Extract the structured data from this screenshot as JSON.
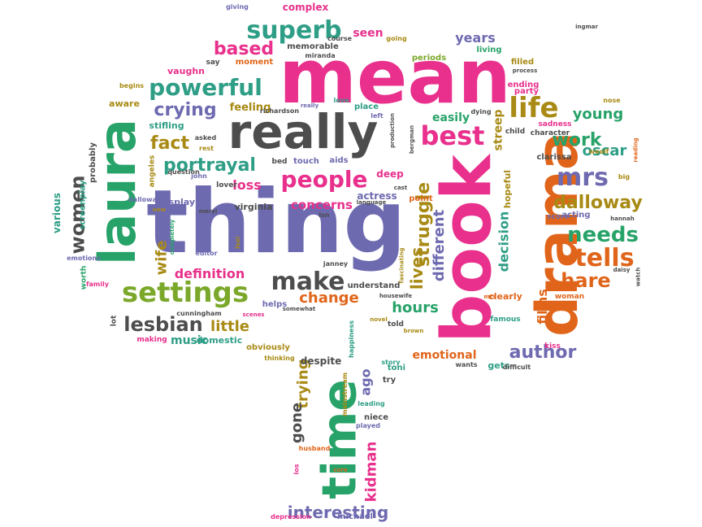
{
  "palette": {
    "pink": "#e8308c",
    "purple": "#6e6ab0",
    "green": "#27a369",
    "orange": "#e0651a",
    "gray": "#4d4d4d",
    "olive": "#a88a14",
    "lime": "#7ba82a",
    "teal": "#2e9e86"
  },
  "words": [
    {
      "text": "mean",
      "color": "pink",
      "size": 92
    },
    {
      "text": "thing",
      "color": "purple",
      "size": 108
    },
    {
      "text": "book",
      "color": "pink",
      "size": 84
    },
    {
      "text": "really",
      "color": "gray",
      "size": 58
    },
    {
      "text": "laura",
      "color": "green",
      "size": 62
    },
    {
      "text": "drama",
      "color": "orange",
      "size": 70
    },
    {
      "text": "time",
      "color": "green",
      "size": 58
    },
    {
      "text": "settings",
      "color": "lime",
      "size": 34
    },
    {
      "text": "powerful",
      "color": "teal",
      "size": 28
    },
    {
      "text": "superb",
      "color": "teal",
      "size": 30
    },
    {
      "text": "life",
      "color": "olive",
      "size": 34
    },
    {
      "text": "best",
      "color": "pink",
      "size": 32
    },
    {
      "text": "people",
      "color": "pink",
      "size": 28
    },
    {
      "text": "make",
      "color": "gray",
      "size": 30
    },
    {
      "text": "tells",
      "color": "orange",
      "size": 30
    },
    {
      "text": "needs",
      "color": "green",
      "size": 26
    },
    {
      "text": "dalloway",
      "color": "olive",
      "size": 22
    },
    {
      "text": "mrs",
      "color": "purple",
      "size": 30
    },
    {
      "text": "struggle",
      "color": "olive",
      "size": 22
    },
    {
      "text": "portrayal",
      "color": "teal",
      "size": 22
    },
    {
      "text": "women",
      "color": "gray",
      "size": 24
    },
    {
      "text": "lesbian",
      "color": "gray",
      "size": 24
    },
    {
      "text": "crying",
      "color": "purple",
      "size": 22
    },
    {
      "text": "hare",
      "color": "orange",
      "size": 24
    },
    {
      "text": "author",
      "color": "purple",
      "size": 22
    },
    {
      "text": "interesting",
      "color": "purple",
      "size": 20
    },
    {
      "text": "fact",
      "color": "olive",
      "size": 22
    },
    {
      "text": "based",
      "color": "pink",
      "size": 22
    },
    {
      "text": "work",
      "color": "green",
      "size": 22
    },
    {
      "text": "young",
      "color": "green",
      "size": 18
    },
    {
      "text": "oscar",
      "color": "teal",
      "size": 18
    },
    {
      "text": "hours",
      "color": "green",
      "size": 18
    },
    {
      "text": "change",
      "color": "orange",
      "size": 18
    },
    {
      "text": "lives",
      "color": "olive",
      "size": 20
    },
    {
      "text": "different",
      "color": "purple",
      "size": 18
    },
    {
      "text": "decision",
      "color": "teal",
      "size": 16
    },
    {
      "text": "films",
      "color": "orange",
      "size": 16
    },
    {
      "text": "kidman",
      "color": "pink",
      "size": 18
    },
    {
      "text": "trying",
      "color": "olive",
      "size": 18
    },
    {
      "text": "gone",
      "color": "gray",
      "size": 18
    },
    {
      "text": "ago",
      "color": "purple",
      "size": 16
    },
    {
      "text": "definition",
      "color": "pink",
      "size": 16
    },
    {
      "text": "little",
      "color": "olive",
      "size": 18
    },
    {
      "text": "music",
      "color": "teal",
      "size": 14
    },
    {
      "text": "concerns",
      "color": "pink",
      "size": 15
    },
    {
      "text": "loss",
      "color": "pink",
      "size": 16
    },
    {
      "text": "years",
      "color": "purple",
      "size": 16
    },
    {
      "text": "easily",
      "color": "green",
      "size": 14
    },
    {
      "text": "streep",
      "color": "olive",
      "size": 14
    },
    {
      "text": "emotional",
      "color": "orange",
      "size": 14
    },
    {
      "text": "wife",
      "color": "olive",
      "size": 18
    },
    {
      "text": "complex",
      "color": "pink",
      "size": 12
    },
    {
      "text": "seen",
      "color": "pink",
      "size": 14
    },
    {
      "text": "virginia",
      "color": "gray",
      "size": 11
    },
    {
      "text": "actress",
      "color": "purple",
      "size": 12
    },
    {
      "text": "deep",
      "color": "pink",
      "size": 12
    },
    {
      "text": "hopeful",
      "color": "olive",
      "size": 11
    },
    {
      "text": "display",
      "color": "purple",
      "size": 11
    },
    {
      "text": "understand",
      "color": "gray",
      "size": 10
    },
    {
      "text": "helps",
      "color": "purple",
      "size": 10
    },
    {
      "text": "despite",
      "color": "gray",
      "size": 12
    },
    {
      "text": "obviously",
      "color": "olive",
      "size": 10
    },
    {
      "text": "domestic",
      "color": "teal",
      "size": 11
    },
    {
      "text": "various",
      "color": "teal",
      "size": 12
    },
    {
      "text": "screenplay",
      "color": "teal",
      "size": 10
    },
    {
      "text": "probably",
      "color": "gray",
      "size": 10
    },
    {
      "text": "feeling",
      "color": "olive",
      "size": 13
    },
    {
      "text": "stifling",
      "color": "teal",
      "size": 11
    },
    {
      "text": "aware",
      "color": "olive",
      "size": 11
    },
    {
      "text": "vaughn",
      "color": "pink",
      "size": 11
    },
    {
      "text": "moment",
      "color": "orange",
      "size": 10
    },
    {
      "text": "memorable",
      "color": "gray",
      "size": 10
    },
    {
      "text": "periods",
      "color": "lime",
      "size": 10
    },
    {
      "text": "living",
      "color": "green",
      "size": 10
    },
    {
      "text": "filled",
      "color": "olive",
      "size": 10
    },
    {
      "text": "ending",
      "color": "pink",
      "size": 10
    },
    {
      "text": "party",
      "color": "pink",
      "size": 10
    },
    {
      "text": "sadness",
      "color": "pink",
      "size": 9
    },
    {
      "text": "clarissa",
      "color": "gray",
      "size": 10
    },
    {
      "text": "acting",
      "color": "purple",
      "size": 10
    },
    {
      "text": "score",
      "color": "purple",
      "size": 9
    },
    {
      "text": "clearly",
      "color": "orange",
      "size": 11
    },
    {
      "text": "famous",
      "color": "teal",
      "size": 9
    },
    {
      "text": "gets",
      "color": "teal",
      "size": 11
    },
    {
      "text": "kiss",
      "color": "pink",
      "size": 9
    },
    {
      "text": "woman",
      "color": "orange",
      "size": 9
    },
    {
      "text": "toni",
      "color": "teal",
      "size": 10
    },
    {
      "text": "told",
      "color": "gray",
      "size": 9
    },
    {
      "text": "try",
      "color": "gray",
      "size": 10
    },
    {
      "text": "niece",
      "color": "gray",
      "size": 10
    },
    {
      "text": "leading",
      "color": "teal",
      "size": 8
    },
    {
      "text": "played",
      "color": "purple",
      "size": 8
    },
    {
      "text": "husband",
      "color": "orange",
      "size": 8
    },
    {
      "text": "mainstream",
      "color": "olive",
      "size": 8
    },
    {
      "text": "michael",
      "color": "purple",
      "size": 10
    },
    {
      "text": "depression",
      "color": "pink",
      "size": 8
    },
    {
      "text": "cunningham",
      "color": "gray",
      "size": 8
    },
    {
      "text": "making",
      "color": "pink",
      "size": 9
    },
    {
      "text": "worth",
      "color": "green",
      "size": 9
    },
    {
      "text": "emotions",
      "color": "purple",
      "size": 8
    },
    {
      "text": "family",
      "color": "pink",
      "size": 8
    },
    {
      "text": "lot",
      "color": "gray",
      "size": 9
    },
    {
      "text": "angeles",
      "color": "olive",
      "size": 9
    },
    {
      "text": "question",
      "color": "gray",
      "size": 8
    },
    {
      "text": "john",
      "color": "purple",
      "size": 8
    },
    {
      "text": "lover",
      "color": "gray",
      "size": 9
    },
    {
      "text": "bed",
      "color": "gray",
      "size": 9
    },
    {
      "text": "touch",
      "color": "purple",
      "size": 10
    },
    {
      "text": "aids",
      "color": "purple",
      "size": 10
    },
    {
      "text": "place",
      "color": "teal",
      "size": 10
    },
    {
      "text": "left",
      "color": "purple",
      "size": 8
    },
    {
      "text": "richardson",
      "color": "gray",
      "size": 8
    },
    {
      "text": "asked",
      "color": "gray",
      "size": 8
    },
    {
      "text": "rest",
      "color": "olive",
      "size": 8
    },
    {
      "text": "say",
      "color": "gray",
      "size": 9
    },
    {
      "text": "giving",
      "color": "purple",
      "size": 8
    },
    {
      "text": "going",
      "color": "olive",
      "size": 8
    },
    {
      "text": "course",
      "color": "gray",
      "size": 8
    },
    {
      "text": "miranda",
      "color": "gray",
      "size": 8
    },
    {
      "text": "begins",
      "color": "olive",
      "size": 8
    },
    {
      "text": "love",
      "color": "teal",
      "size": 8
    },
    {
      "text": "really",
      "color": "purple",
      "size": 7
    },
    {
      "text": "dying",
      "color": "gray",
      "size": 8
    },
    {
      "text": "child",
      "color": "gray",
      "size": 9
    },
    {
      "text": "character",
      "color": "gray",
      "size": 9
    },
    {
      "text": "woolf",
      "color": "olive",
      "size": 8
    },
    {
      "text": "big",
      "color": "olive",
      "size": 8
    },
    {
      "text": "nose",
      "color": "olive",
      "size": 8
    },
    {
      "text": "ingmar",
      "color": "gray",
      "size": 7
    },
    {
      "text": "process",
      "color": "gray",
      "size": 7
    },
    {
      "text": "reading",
      "color": "orange",
      "size": 7
    },
    {
      "text": "dalloway",
      "color": "purple",
      "size": 8
    },
    {
      "text": "new",
      "color": "olive",
      "size": 7
    },
    {
      "text": "completely",
      "color": "green",
      "size": 7
    },
    {
      "text": "editor",
      "color": "purple",
      "size": 8
    },
    {
      "text": "meryl",
      "color": "gray",
      "size": 7
    },
    {
      "text": "feel",
      "color": "olive",
      "size": 7
    },
    {
      "text": "janney",
      "color": "gray",
      "size": 8
    },
    {
      "text": "scenes",
      "color": "pink",
      "size": 7
    },
    {
      "text": "somewhat",
      "color": "gray",
      "size": 7
    },
    {
      "text": "housewife",
      "color": "gray",
      "size": 7
    },
    {
      "text": "novel",
      "color": "olive",
      "size": 7
    },
    {
      "text": "brown",
      "color": "olive",
      "size": 7
    },
    {
      "text": "happiness",
      "color": "teal",
      "size": 8
    },
    {
      "text": "thinking",
      "color": "olive",
      "size": 8
    },
    {
      "text": "story",
      "color": "teal",
      "size": 8
    },
    {
      "text": "wants",
      "color": "gray",
      "size": 8
    },
    {
      "text": "difficult",
      "color": "gray",
      "size": 8
    },
    {
      "text": "language",
      "color": "gray",
      "size": 7
    },
    {
      "text": "isn",
      "color": "gray",
      "size": 8
    },
    {
      "text": "cast",
      "color": "gray",
      "size": 7
    },
    {
      "text": "bergman",
      "color": "gray",
      "size": 7
    },
    {
      "text": "production",
      "color": "gray",
      "size": 7
    },
    {
      "text": "fascinating",
      "color": "olive",
      "size": 7
    },
    {
      "text": "point",
      "color": "orange",
      "size": 10
    },
    {
      "text": "los",
      "color": "pink",
      "size": 8
    },
    {
      "text": "core",
      "color": "orange",
      "size": 7
    },
    {
      "text": "daisy",
      "color": "gray",
      "size": 7
    },
    {
      "text": "watch",
      "color": "gray",
      "size": 7
    },
    {
      "text": "hannah",
      "color": "gray",
      "size": 7
    },
    {
      "text": "mrs",
      "color": "orange",
      "size": 7
    }
  ]
}
